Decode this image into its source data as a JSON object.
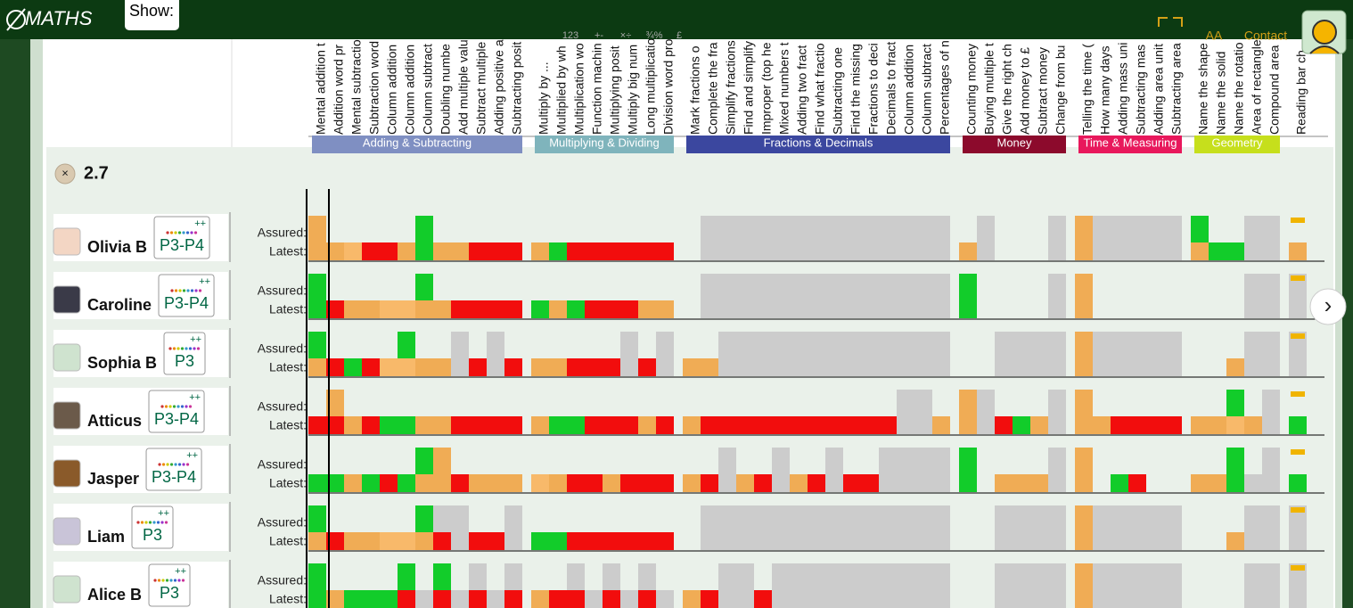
{
  "header": {
    "logo": "MATHS",
    "show": "Show:",
    "toolbar": [
      "123",
      "+-",
      "×÷",
      "¾%",
      "£"
    ],
    "font_size": "AA",
    "contact": "Contact"
  },
  "columns": {
    "groups": [
      {
        "name": "Adding & Subtracting",
        "color": "#7f8fc2",
        "topics": [
          "Mental addition t",
          "Addition word pr",
          "Mental subtractio",
          "Subtraction word",
          "Column addition",
          "Column addition",
          "Column subtract",
          "Doubling numbe",
          "Add multiple valu",
          "Subtract multiple",
          "Adding positive a",
          "Subtracting posit"
        ]
      },
      {
        "name": "Multiplying & Dividing",
        "color": "#7fb4bc",
        "topics": [
          "Multiply by ...",
          "Multiplied by wh",
          "Multiplication wo",
          "Function machin",
          "Multiplying posit",
          "Multiply big num",
          "Long multiplicatio",
          "Division word pro"
        ]
      },
      {
        "name": "Fractions & Decimals",
        "color": "#3b479f",
        "topics": [
          "Mark fractions o",
          "Complete the fra",
          "Simplify fractions",
          "Find and simplify",
          "Improper (top he",
          "Mixed numbers t",
          "Adding two fract",
          "Find what fractio",
          "Subtracting one",
          "Find the missing",
          "Fractions to deci",
          "Decimals to fract",
          "Column addition",
          "Column subtract",
          "Percentages of n"
        ]
      },
      {
        "name": "Money",
        "color": "#8c0a2c",
        "topics": [
          "Counting money",
          "Buying multiple t",
          "Give the right ch",
          "Add money to £",
          "Subtract money",
          "Change from bu"
        ]
      },
      {
        "name": "Time & Measuring",
        "color": "#e8185c",
        "topics": [
          "Telling the time (",
          "How many days",
          "Adding mass uni",
          "Subtracting mas",
          "Adding area unit",
          "Subtracting area"
        ]
      },
      {
        "name": "Geometry",
        "color": "#c6df1c",
        "topics": [
          "Name the shape",
          "Name the solid",
          "Name the rotatio",
          "Area of rectangle",
          "Compound area"
        ]
      }
    ],
    "ungrouped_topics": [
      "Reading bar ch"
    ]
  },
  "filter": "2.7",
  "row_labels": {
    "assured": "Assured:",
    "latest": "Latest:"
  },
  "level_mark": "++",
  "next": "›",
  "students": [
    {
      "name": "Olivia B",
      "level": "P3-P4"
    },
    {
      "name": "Caroline",
      "level": "P3-P4"
    },
    {
      "name": "Sophia B",
      "level": "P3"
    },
    {
      "name": "Atticus",
      "level": "P3-P4"
    },
    {
      "name": "Jasper",
      "level": "P3-P4"
    },
    {
      "name": "Liam",
      "level": "P3"
    },
    {
      "name": "Alice B",
      "level": "P3"
    }
  ]
}
